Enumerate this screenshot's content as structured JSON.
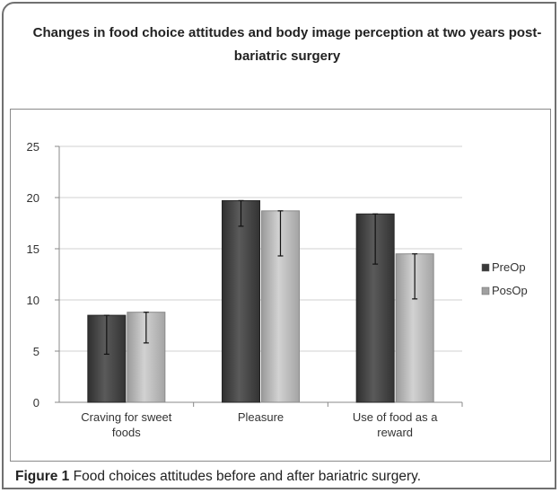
{
  "figure": {
    "title": "Changes in food choice attitudes and body image perception at two years post-bariatric surgery",
    "caption_label": "Figure 1",
    "caption_text": "Food choices attitudes before and after bariatric surgery."
  },
  "chart_data": {
    "type": "bar",
    "title": "Changes in food choice attitudes and body image perception at two years post-bariatric surgery",
    "categories": [
      "Craving for sweet foods",
      "Pleasure",
      "Use of food as a reward"
    ],
    "category_lines": [
      [
        "Craving for sweet",
        "foods"
      ],
      [
        "Pleasure"
      ],
      [
        "Use of food as a",
        "reward"
      ]
    ],
    "series": [
      {
        "name": "PreOp",
        "values": [
          8.5,
          19.7,
          18.4
        ],
        "error_low": [
          4.7,
          17.2,
          13.5
        ],
        "color": "#4a4a4a",
        "legend_color": "#3a3a3a"
      },
      {
        "name": "PosOp",
        "values": [
          8.8,
          18.7,
          14.5
        ],
        "error_low": [
          5.8,
          14.3,
          10.1
        ],
        "color": "#b8b8b8",
        "legend_color": "#a0a0a0"
      }
    ],
    "yticks": [
      "0",
      "5",
      "10",
      "15",
      "20",
      "25"
    ],
    "ylim": [
      0,
      25
    ],
    "xlabel": "",
    "ylabel": "",
    "grid": true,
    "legend_position": "right"
  }
}
